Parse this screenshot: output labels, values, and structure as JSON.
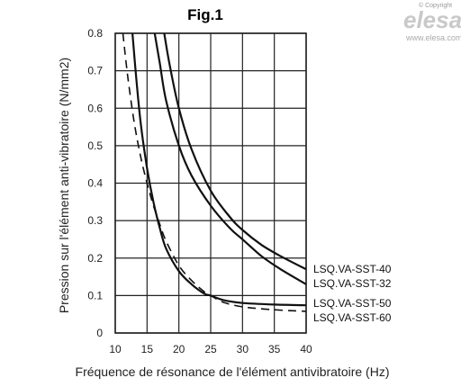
{
  "brand": {
    "copyright": "© Copyright",
    "name": "elesa",
    "url": "www.elesa.com"
  },
  "chart_data": {
    "type": "line",
    "title": "Fig.1",
    "xlabel": "Fréquence de résonance de l'élément antivibratoire (Hz)",
    "ylabel": "Pression sur l'élément anti-vibratoire (N/mm2)",
    "xlim": [
      10,
      40
    ],
    "ylim": [
      0,
      0.8
    ],
    "x_ticks": [
      "10",
      "15",
      "20",
      "25",
      "30",
      "35",
      "40"
    ],
    "y_ticks": [
      "0",
      "0.1",
      "0.2",
      "0.3",
      "0.4",
      "0.5",
      "0.6",
      "0.7",
      "0.8"
    ],
    "grid": true,
    "series": [
      {
        "name": "LSQ.VA-SST-40",
        "style": "solid",
        "points": [
          [
            17.7,
            0.8
          ],
          [
            18.5,
            0.72
          ],
          [
            20,
            0.6
          ],
          [
            22,
            0.49
          ],
          [
            25,
            0.38
          ],
          [
            28,
            0.31
          ],
          [
            30,
            0.275
          ],
          [
            33,
            0.235
          ],
          [
            36,
            0.205
          ],
          [
            40,
            0.17
          ]
        ]
      },
      {
        "name": "LSQ.VA-SST-32",
        "style": "solid",
        "points": [
          [
            16.2,
            0.8
          ],
          [
            17,
            0.72
          ],
          [
            18,
            0.62
          ],
          [
            20,
            0.5
          ],
          [
            22,
            0.42
          ],
          [
            25,
            0.34
          ],
          [
            28,
            0.28
          ],
          [
            30,
            0.25
          ],
          [
            33,
            0.205
          ],
          [
            36,
            0.17
          ],
          [
            40,
            0.13
          ]
        ]
      },
      {
        "name": "LSQ.VA-SST-50",
        "style": "solid",
        "points": [
          [
            12.7,
            0.8
          ],
          [
            13.2,
            0.7
          ],
          [
            14,
            0.56
          ],
          [
            15,
            0.44
          ],
          [
            16,
            0.35
          ],
          [
            17,
            0.28
          ],
          [
            18,
            0.225
          ],
          [
            20,
            0.165
          ],
          [
            22,
            0.13
          ],
          [
            24,
            0.105
          ],
          [
            25,
            0.1
          ],
          [
            27,
            0.088
          ],
          [
            30,
            0.08
          ],
          [
            35,
            0.076
          ],
          [
            40,
            0.074
          ]
        ]
      },
      {
        "name": "LSQ.VA-SST-60",
        "style": "dashed",
        "points": [
          [
            11.2,
            0.8
          ],
          [
            12,
            0.68
          ],
          [
            13,
            0.56
          ],
          [
            14,
            0.47
          ],
          [
            15,
            0.4
          ],
          [
            16,
            0.34
          ],
          [
            17,
            0.29
          ],
          [
            18,
            0.245
          ],
          [
            20,
            0.18
          ],
          [
            22,
            0.14
          ],
          [
            24,
            0.11
          ],
          [
            25,
            0.1
          ],
          [
            27,
            0.082
          ],
          [
            30,
            0.07
          ],
          [
            35,
            0.062
          ],
          [
            40,
            0.058
          ]
        ]
      }
    ],
    "colors": {
      "lines": "#111111",
      "grid": "#222222"
    }
  }
}
